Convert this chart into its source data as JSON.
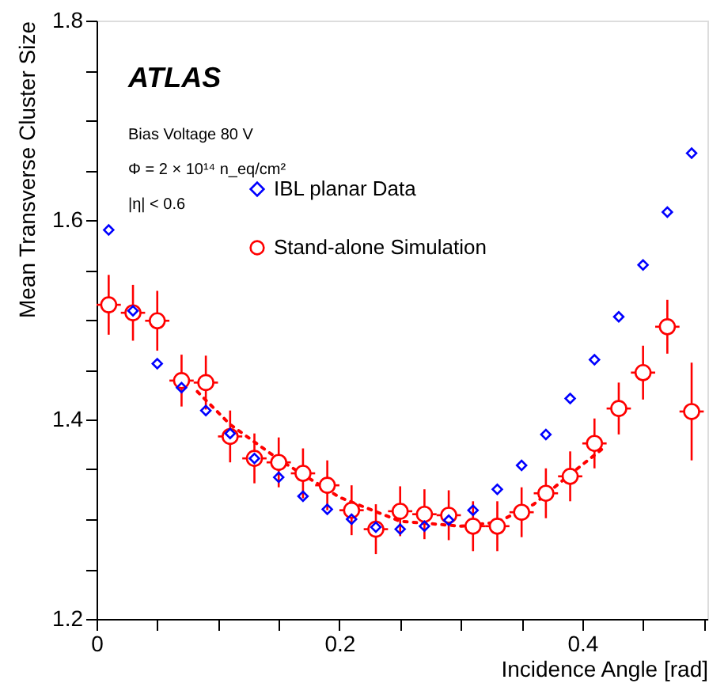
{
  "chart_data": {
    "type": "scatter",
    "xlabel": "Incidence Angle [rad]",
    "ylabel": "Mean Transverse Cluster Size",
    "x": [
      0.01,
      0.03,
      0.05,
      0.07,
      0.09,
      0.11,
      0.13,
      0.15,
      0.17,
      0.19,
      0.21,
      0.23,
      0.25,
      0.27,
      0.29,
      0.31,
      0.33,
      0.35,
      0.37,
      0.39,
      0.41,
      0.43,
      0.45,
      0.47,
      0.49
    ],
    "series": [
      {
        "name": "IBL planar Data",
        "color": "#0000ff",
        "marker": "diamond",
        "values": [
          1.59,
          1.509,
          1.456,
          1.432,
          1.409,
          1.386,
          1.361,
          1.342,
          1.323,
          1.31,
          1.3,
          1.292,
          1.29,
          1.293,
          1.299,
          1.309,
          1.33,
          1.354,
          1.385,
          1.421,
          1.46,
          1.503,
          1.555,
          1.608,
          1.667
        ]
      },
      {
        "name": "Stand-alone Simulation",
        "color": "#ff0000",
        "marker": "circle",
        "values": [
          1.515,
          1.507,
          1.499,
          1.439,
          1.437,
          1.383,
          1.361,
          1.357,
          1.346,
          1.334,
          1.309,
          1.29,
          1.308,
          1.305,
          1.304,
          1.293,
          1.293,
          1.307,
          1.326,
          1.343,
          1.376,
          1.411,
          1.447,
          1.493,
          1.408
        ],
        "errors": [
          0.03,
          0.028,
          0.03,
          0.026,
          0.027,
          0.026,
          0.025,
          0.025,
          0.025,
          0.025,
          0.025,
          0.025,
          0.025,
          0.025,
          0.025,
          0.025,
          0.025,
          0.025,
          0.025,
          0.025,
          0.025,
          0.026,
          0.027,
          0.027,
          0.049
        ],
        "xerrors": [
          0.01,
          0.01,
          0.01,
          0.01,
          0.01,
          0.01,
          0.01,
          0.01,
          0.01,
          0.01,
          0.01,
          0.01,
          0.01,
          0.01,
          0.01,
          0.01,
          0.01,
          0.01,
          0.01,
          0.01,
          0.01,
          0.01,
          0.01,
          0.01,
          0.01
        ]
      },
      {
        "type": "line",
        "color": "#ff0000",
        "line_style": "dotted",
        "x": [
          0.083,
          0.11,
          0.15,
          0.2,
          0.25,
          0.3,
          0.33,
          0.36,
          0.39,
          0.418
        ],
        "values": [
          1.428,
          1.395,
          1.36,
          1.322,
          1.298,
          1.293,
          1.297,
          1.315,
          1.345,
          1.372
        ]
      }
    ],
    "xlim": [
      0,
      0.503
    ],
    "ylim": [
      1.2,
      1.8
    ],
    "xticks": [
      0,
      {
        "value": 0.05,
        "label": null
      },
      {
        "value": 0.1,
        "label": null
      },
      {
        "value": 0.15,
        "label": null
      },
      0.2,
      {
        "value": 0.25,
        "label": null
      },
      {
        "value": 0.3,
        "label": null
      },
      {
        "value": 0.35,
        "label": null
      },
      0.4,
      {
        "value": 0.45,
        "label": null
      },
      {
        "value": 0.5,
        "label": null
      }
    ],
    "yticks": [
      1.2,
      {
        "value": 1.25,
        "label": null
      },
      {
        "value": 1.3,
        "label": null
      },
      {
        "value": 1.35,
        "label": null
      },
      1.4,
      {
        "value": 1.45,
        "label": null
      },
      {
        "value": 1.5,
        "label": null
      },
      {
        "value": 1.55,
        "label": null
      },
      1.6,
      {
        "value": 1.65,
        "label": null
      },
      {
        "value": 1.7,
        "label": null
      },
      {
        "value": 1.75,
        "label": null
      },
      1.8
    ],
    "grid": false,
    "legend": "top",
    "annotations": [
      "ATLAS",
      "Bias Voltage 80 V",
      "Φ = 2 × 10¹⁴ n_eq/cm²",
      "|η| < 0.6"
    ]
  }
}
